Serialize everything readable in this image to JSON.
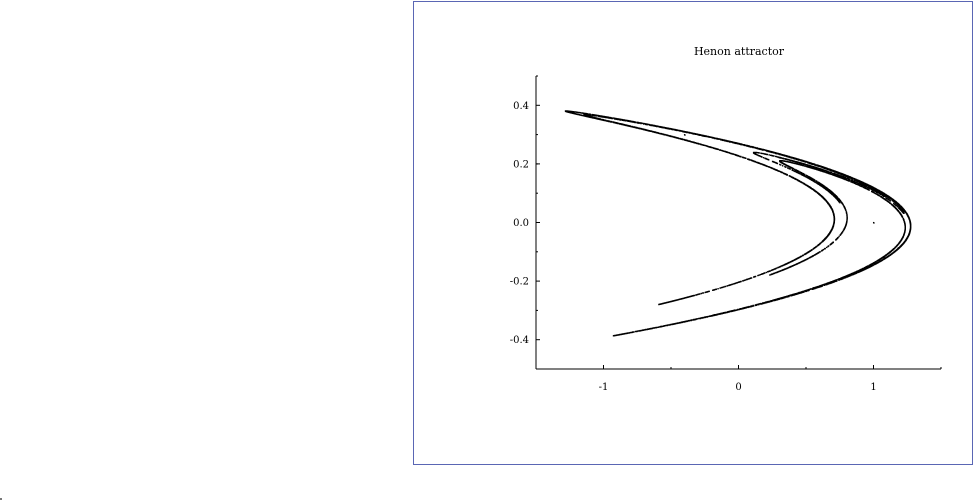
{
  "colors": {
    "frame_border": "#5a66b4",
    "curve": "#000000",
    "background": "#ffffff"
  },
  "chart_data": {
    "type": "scatter",
    "title": "Henon attractor",
    "xlabel": "",
    "ylabel": "",
    "xlim": [
      -1.5,
      1.5
    ],
    "ylim": [
      -0.5,
      0.5
    ],
    "x_ticks": [
      -1,
      0,
      1
    ],
    "x_tick_labels": [
      "-1",
      "0",
      "1"
    ],
    "y_ticks": [
      -0.4,
      -0.2,
      0.0,
      0.2,
      0.4
    ],
    "y_tick_labels": [
      "-0.4",
      "-0.2",
      "0.0",
      "0.2",
      "0.4"
    ],
    "grid": false,
    "legend": "none",
    "map": {
      "a": 1.4,
      "b": 0.3,
      "x0": 1,
      "y0": 0,
      "iterations": 10000
    },
    "series": [
      {
        "values": [
          {
            "x": 1.0,
            "y": 0.0
          },
          {
            "x": -0.4,
            "y": 0.3
          },
          {
            "x": 1.076,
            "y": -0.12
          },
          {
            "x": -0.7409,
            "y": 0.3228
          },
          {
            "x": 0.5543,
            "y": -0.2223
          },
          {
            "x": 0.3477,
            "y": 0.1663
          },
          {
            "x": 0.997,
            "y": 0.1043
          },
          {
            "x": -0.2873,
            "y": 0.2991
          },
          {
            "x": 1.1835,
            "y": -0.0862
          },
          {
            "x": -1.0472,
            "y": 0.3551
          },
          {
            "x": -0.1801,
            "y": -0.3142
          },
          {
            "x": 0.6404,
            "y": -0.054
          },
          {
            "x": 0.3718,
            "y": 0.1921
          },
          {
            "x": 1.0036,
            "y": 0.1115
          }
        ]
      }
    ]
  }
}
